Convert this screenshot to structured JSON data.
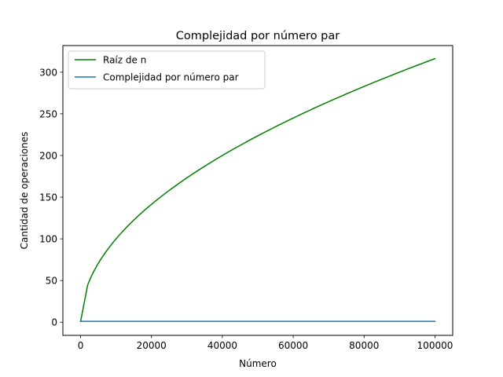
{
  "chart_data": {
    "type": "line",
    "title": "Complejidad por número par",
    "xlabel": "Número",
    "ylabel": "Cantidad de operaciones",
    "xlim": [
      -5000,
      105000
    ],
    "ylim": [
      -15.8,
      331.9
    ],
    "xticks": [
      0,
      20000,
      40000,
      60000,
      80000,
      100000
    ],
    "xtick_labels": [
      "0",
      "20000",
      "40000",
      "60000",
      "80000",
      "100000"
    ],
    "yticks": [
      0,
      50,
      100,
      150,
      200,
      250,
      300
    ],
    "ytick_labels": [
      "0",
      "50",
      "100",
      "150",
      "200",
      "250",
      "300"
    ],
    "grid": false,
    "legend_position": "upper-left",
    "series": [
      {
        "name": "Raíz de n",
        "color": "#008000",
        "function": "sqrt",
        "x": [
          0,
          2000,
          4000,
          6000,
          8000,
          10000,
          15000,
          20000,
          25000,
          30000,
          35000,
          40000,
          45000,
          50000,
          55000,
          60000,
          65000,
          70000,
          75000,
          80000,
          85000,
          90000,
          95000,
          100000
        ],
        "values": [
          1,
          44.7,
          63.2,
          77.5,
          89.4,
          100,
          122.5,
          141.4,
          158.1,
          173.2,
          187.1,
          200,
          212.1,
          223.6,
          234.5,
          244.9,
          255,
          264.6,
          273.9,
          282.8,
          291.5,
          300,
          308.2,
          316.2
        ]
      },
      {
        "name": "Complejidad por número par",
        "color": "#1f77b4",
        "function": "constant",
        "x": [
          0,
          100000
        ],
        "values": [
          1,
          1
        ]
      }
    ]
  }
}
